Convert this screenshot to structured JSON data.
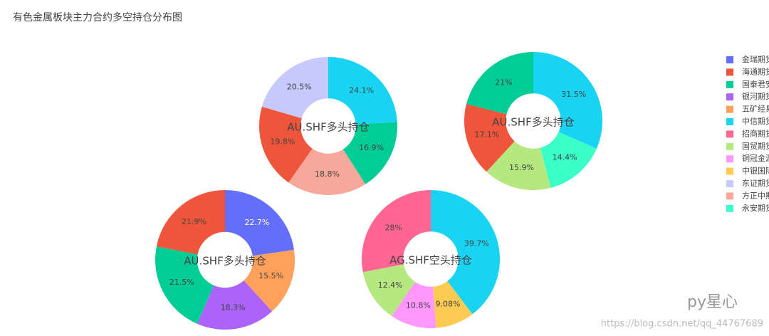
{
  "title": "有色金属板块主力合约多空持仓分布图",
  "chart_data": [
    {
      "type": "pie",
      "title": "AU.SHF多头持仓",
      "categories": [
        "中信期货",
        "国泰君安",
        "方正中期",
        "海通期货",
        "东证期货"
      ],
      "values": [
        24.1,
        16.9,
        18.8,
        19.8,
        20.5
      ],
      "value_labels": [
        "24.1%",
        "16.9%",
        "18.8%",
        "19.8%",
        "20.5%"
      ],
      "colors": [
        "#19d3f3",
        "#00cc96",
        "#f8a89a",
        "#ef553b",
        "#c6c9fb"
      ]
    },
    {
      "type": "pie",
      "title": "AU.SHF多头持仓",
      "categories": [
        "中信期货",
        "永安期货",
        "国贸期货",
        "海通期货",
        "国泰君安"
      ],
      "values": [
        31.5,
        14.4,
        15.9,
        17.1,
        21
      ],
      "value_labels": [
        "31.5%",
        "14.4%",
        "15.9%",
        "17.1%",
        "21%"
      ],
      "colors": [
        "#19d3f3",
        "#3affc8",
        "#b6e880",
        "#ef553b",
        "#00cc96"
      ]
    },
    {
      "type": "pie",
      "title": "AU.SHF多头持仓",
      "categories": [
        "金瑞期货",
        "五矿经易",
        "银河期货",
        "国泰君安",
        "海通期货"
      ],
      "values": [
        22.7,
        15.5,
        18.3,
        21.5,
        21.9
      ],
      "value_labels": [
        "22.7%",
        "15.5%",
        "18.3%",
        "21.5%",
        "21.9%"
      ],
      "colors": [
        "#636efa",
        "#ffa15a",
        "#ab63fa",
        "#00cc96",
        "#ef553b"
      ]
    },
    {
      "type": "pie",
      "title": "AG.SHF空头持仓",
      "categories": [
        "中信期货",
        "中银国际",
        "铜冠金源",
        "国贸期货",
        "招商期货"
      ],
      "values": [
        39.7,
        9.08,
        10.8,
        12.4,
        28
      ],
      "value_labels": [
        "39.7%",
        "9.08%",
        "10.8%",
        "12.4%",
        "28%"
      ],
      "colors": [
        "#19d3f3",
        "#fecb52",
        "#ff97ff",
        "#b6e880",
        "#ff6692"
      ]
    }
  ],
  "legend": {
    "names": [
      "金瑞期货",
      "海通期货",
      "国泰君安",
      "银河期货",
      "五矿经易",
      "中信期货",
      "招商期货",
      "国贸期货",
      "铜冠金源",
      "中银国际",
      "东证期货",
      "方正中期",
      "永安期货"
    ],
    "colors": [
      "#636efa",
      "#ef553b",
      "#00cc96",
      "#ab63fa",
      "#ffa15a",
      "#19d3f3",
      "#ff6692",
      "#b6e880",
      "#ff97ff",
      "#fecb52",
      "#c6c9fb",
      "#f8a89a",
      "#3affc8"
    ]
  },
  "watermark": {
    "brand": "py星心",
    "url": "https://blog.csdn.net/qq_44767689"
  }
}
